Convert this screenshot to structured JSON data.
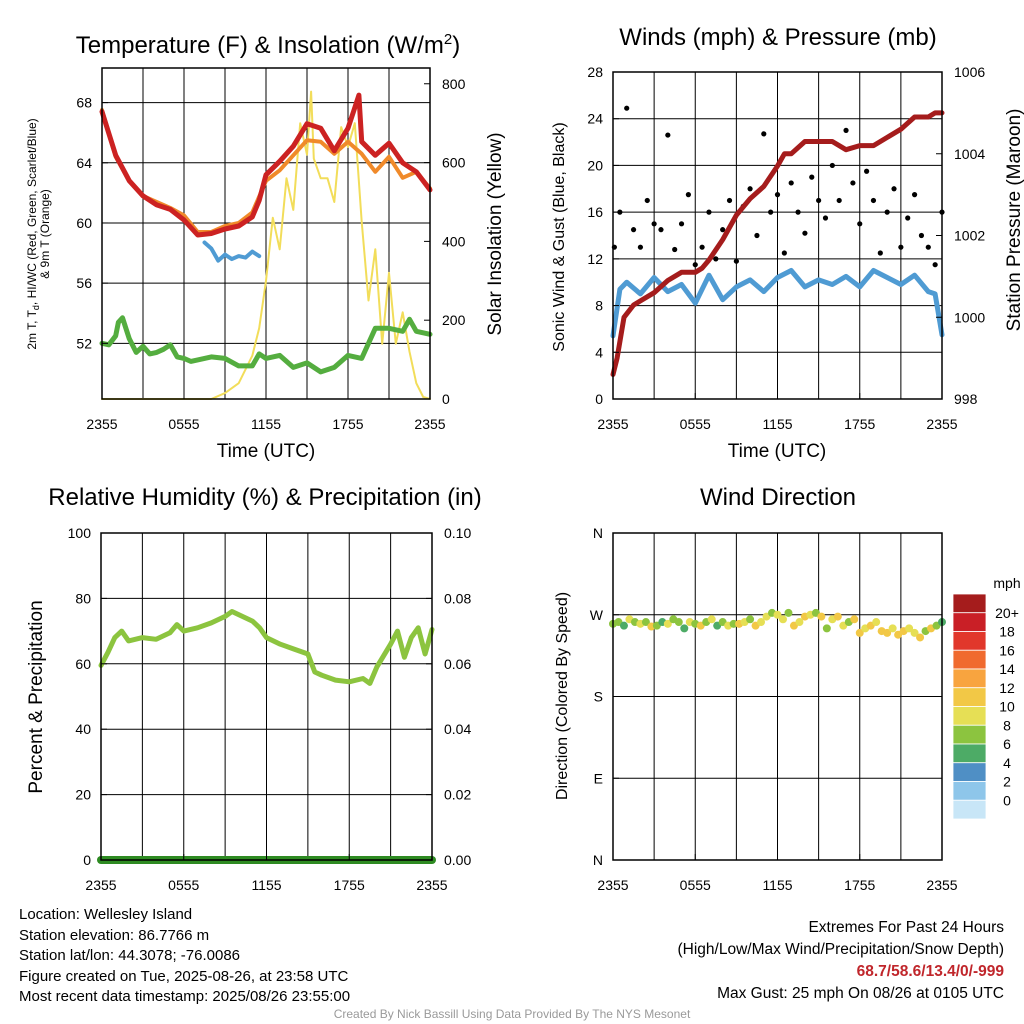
{
  "chart_data": [
    {
      "type": "line",
      "title": "Temperature (F) & Insolation (W/m²)",
      "title_parts": [
        "Temperature (F) & Insolation (W/m",
        "2",
        ")"
      ],
      "xlabel": "Time (UTC)",
      "ylabel_lines": [
        "2m T, T",
        "d",
        ", HI/WC (Red, Green, Scarlet/Blue)",
        "& 9m T (Orange)"
      ],
      "y2label": "Solar Insolation (Yellow)",
      "x_ticks": [
        "2355",
        "0555",
        "1155",
        "1755",
        "2355"
      ],
      "ylim": [
        48.3,
        70.3
      ],
      "y_ticks": [
        52,
        56,
        60,
        64,
        68
      ],
      "y2lim": [
        0,
        840
      ],
      "y2_ticks": [
        0,
        200,
        400,
        600,
        800
      ],
      "series": [
        {
          "color": "#cc2222",
          "axis": "left",
          "x": [
            0,
            1,
            2,
            3,
            4,
            5,
            6,
            7,
            8,
            9,
            10,
            11,
            11.5,
            12,
            13,
            14,
            15,
            16,
            17,
            18,
            18.4,
            18.8,
            19,
            20,
            21,
            22,
            23,
            24
          ],
          "values": [
            67.4,
            64.5,
            62.8,
            61.8,
            61.2,
            60.9,
            60.2,
            59.2,
            59.3,
            59.6,
            59.8,
            60.4,
            61.5,
            63.2,
            64.1,
            65.1,
            66.6,
            66.3,
            64.8,
            66.3,
            67.4,
            68.5,
            65.4,
            64.5,
            65.3,
            64.0,
            63.4,
            62.2
          ]
        },
        {
          "color": "#f08a2a",
          "axis": "left",
          "x": [
            0,
            1,
            2,
            3,
            4,
            5,
            6,
            7,
            8,
            9,
            10,
            11,
            12,
            13,
            14,
            15,
            16,
            17,
            18,
            18.5,
            19,
            20,
            21,
            22,
            23,
            24
          ],
          "values": [
            67.5,
            64.4,
            62.8,
            61.8,
            61.4,
            61.0,
            60.5,
            59.4,
            59.4,
            59.8,
            60.0,
            60.7,
            62.8,
            63.5,
            64.5,
            65.5,
            65.4,
            64.6,
            65.4,
            65.0,
            64.6,
            63.4,
            64.4,
            63.0,
            63.4,
            62.3
          ]
        },
        {
          "color": "#4f9bd3",
          "axis": "left",
          "x": [
            7.5,
            8,
            8.5,
            9,
            9.5,
            10,
            10.5,
            11,
            11.5
          ],
          "values": [
            58.7,
            58.3,
            57.5,
            57.9,
            57.6,
            57.8,
            57.7,
            58.1,
            57.8
          ]
        },
        {
          "color": "#54ad3f",
          "axis": "left",
          "x": [
            0,
            0.5,
            1,
            1.2,
            1.5,
            2,
            2.5,
            3,
            3.5,
            4,
            4.5,
            5,
            5.5,
            6,
            6.5,
            7,
            8,
            9,
            10,
            11,
            11.5,
            12,
            13,
            14,
            15,
            16,
            17,
            18,
            19,
            20,
            21,
            22,
            22.5,
            23,
            24
          ],
          "values": [
            52.0,
            51.9,
            52.5,
            53.4,
            53.7,
            52.3,
            51.4,
            51.8,
            51.3,
            51.4,
            51.6,
            51.9,
            51.1,
            51.0,
            50.8,
            50.9,
            51.1,
            51.0,
            50.5,
            50.5,
            51.3,
            51.0,
            51.2,
            50.4,
            50.7,
            50.1,
            50.4,
            51.2,
            51.0,
            53.0,
            53.0,
            52.8,
            53.6,
            52.8,
            52.6
          ]
        },
        {
          "color": "#f2dd5a",
          "axis": "right",
          "x": [
            0,
            5,
            8,
            9,
            10,
            11,
            11.5,
            12,
            12.5,
            13,
            13.5,
            14,
            14.5,
            15,
            15.3,
            15.5,
            16,
            16.5,
            17,
            17.5,
            18,
            18.5,
            19,
            19.5,
            20,
            20.5,
            21,
            21.5,
            22,
            22.5,
            23,
            23.5,
            24
          ],
          "values": [
            0,
            0,
            0,
            15,
            40,
            110,
            180,
            300,
            460,
            380,
            560,
            480,
            700,
            620,
            780,
            610,
            560,
            560,
            500,
            690,
            640,
            700,
            450,
            250,
            380,
            140,
            320,
            140,
            220,
            120,
            40,
            5,
            0
          ]
        }
      ]
    },
    {
      "type": "line",
      "title": "Winds (mph) & Pressure (mb)",
      "xlabel": "Time (UTC)",
      "ylabel": "Sonic Wind & Gust (Blue, Black)",
      "y2label": "Station Pressure (Maroon)",
      "x_ticks": [
        "2355",
        "0555",
        "1155",
        "1755",
        "2355"
      ],
      "ylim": [
        0,
        28
      ],
      "y_ticks": [
        0,
        4,
        8,
        12,
        16,
        20,
        24,
        28
      ],
      "y2lim": [
        998,
        1006
      ],
      "y2_ticks": [
        998,
        1000,
        1002,
        1004,
        1006
      ],
      "series": [
        {
          "name": "",
          "color": "#4f9bd3",
          "axis": "left",
          "x": [
            0,
            0.5,
            1,
            2,
            3,
            4,
            5,
            6,
            7,
            8,
            9,
            10,
            11,
            12,
            13,
            14,
            15,
            16,
            17,
            18,
            19,
            20,
            21,
            22,
            23,
            23.5,
            24
          ],
          "values": [
            5.4,
            9.4,
            10.0,
            9.0,
            10.4,
            9.2,
            9.8,
            8.2,
            10.6,
            8.5,
            9.6,
            10.2,
            9.2,
            10.4,
            11.0,
            9.6,
            10.2,
            9.8,
            10.5,
            9.6,
            11.0,
            10.4,
            9.8,
            10.6,
            9.2,
            9.0,
            5.5
          ]
        },
        {
          "name": "",
          "color": "#000000",
          "axis": "left",
          "style": "points",
          "x": [
            0.1,
            0.5,
            1,
            1.5,
            2,
            2.5,
            3,
            3.5,
            4,
            4.5,
            5,
            5.5,
            6,
            6.5,
            7,
            7.5,
            8,
            8.5,
            9,
            9.5,
            10,
            10.5,
            11,
            11.5,
            12,
            12.5,
            13,
            13.5,
            14,
            14.5,
            15,
            15.5,
            16,
            16.5,
            17,
            17.5,
            18,
            18.5,
            19,
            19.5,
            20,
            20.5,
            21,
            21.5,
            22,
            22.5,
            23,
            23.5,
            24
          ],
          "values": [
            13.0,
            16.0,
            24.9,
            14.5,
            13.0,
            17.0,
            15.0,
            14.5,
            22.6,
            12.8,
            15.0,
            17.5,
            11.5,
            13.0,
            16.0,
            12.0,
            14.5,
            17.0,
            11.8,
            16.5,
            18.0,
            14.0,
            22.7,
            16.0,
            17.5,
            12.5,
            18.5,
            16.0,
            14.2,
            19.0,
            17.0,
            15.5,
            20.0,
            17.0,
            23.0,
            18.5,
            15.0,
            19.5,
            17.0,
            12.5,
            16.0,
            18.0,
            13.0,
            15.5,
            17.5,
            14.0,
            13.0,
            11.5,
            16.0
          ]
        },
        {
          "name": "",
          "color": "#a51c1c",
          "axis": "right",
          "x": [
            0,
            0.3,
            0.8,
            1.5,
            2,
            3,
            4,
            5,
            6,
            6.5,
            7,
            8,
            9,
            10,
            11,
            12,
            12.5,
            13,
            14,
            15,
            16,
            17,
            18,
            19,
            20,
            21,
            22,
            23,
            23.5,
            24
          ],
          "values": [
            998.6,
            999.0,
            1000.0,
            1000.3,
            1000.4,
            1000.6,
            1000.9,
            1001.1,
            1001.1,
            1001.2,
            1001.4,
            1001.9,
            1002.5,
            1002.9,
            1003.2,
            1003.7,
            1004.0,
            1004.0,
            1004.3,
            1004.3,
            1004.3,
            1004.1,
            1004.2,
            1004.2,
            1004.4,
            1004.6,
            1004.9,
            1004.9,
            1005.0,
            1005.0
          ]
        }
      ]
    },
    {
      "type": "line",
      "title": "Relative Humidity (%) & Precipitation (in)",
      "ylabel": "Percent & Precipitation",
      "x_ticks": [
        "2355",
        "0555",
        "1155",
        "1755",
        "2355"
      ],
      "ylim": [
        0,
        100
      ],
      "y_ticks": [
        0,
        20,
        40,
        60,
        80,
        100
      ],
      "y2lim": [
        0,
        0.1
      ],
      "y2_ticks": [
        "0.00",
        "0.02",
        "0.04",
        "0.06",
        "0.08",
        "0.10"
      ],
      "series": [
        {
          "name": "",
          "color": "#8cc43f",
          "axis": "left",
          "x": [
            0,
            0.5,
            1,
            1.5,
            2,
            3,
            4,
            5,
            5.5,
            6,
            7,
            8,
            9,
            9.5,
            10,
            11,
            11.5,
            12,
            13,
            14,
            15,
            15.5,
            16,
            17,
            18,
            19,
            19.5,
            20,
            21,
            21.5,
            22,
            22.5,
            23,
            23.5,
            24
          ],
          "values": [
            59.5,
            63.5,
            68.0,
            70.0,
            67.0,
            68.0,
            67.5,
            69.5,
            72.0,
            70.0,
            71.0,
            72.5,
            74.5,
            76.0,
            75.0,
            73.0,
            71.0,
            68.0,
            66.0,
            64.5,
            63.0,
            57.5,
            56.5,
            55.0,
            54.5,
            55.5,
            54.0,
            59.0,
            66.0,
            70.0,
            62.0,
            68.0,
            71.0,
            63.0,
            70.5
          ]
        },
        {
          "name": "",
          "color": "#2e8b22",
          "axis": "right",
          "x": [
            0,
            24
          ],
          "values": [
            0.0,
            0.0
          ]
        }
      ]
    },
    {
      "type": "scatter",
      "title": "Wind Direction",
      "xlabel": "",
      "ylabel": "Direction (Colored By Speed)",
      "x_ticks": [
        "2355",
        "0555",
        "1155",
        "1755",
        "2355"
      ],
      "y_ticks": [
        "N",
        "E",
        "S",
        "W",
        "N"
      ],
      "ylim": [
        0,
        360
      ],
      "colorbar": {
        "title": "mph",
        "labels": [
          "20+",
          "18",
          "16",
          "14",
          "12",
          "10",
          "8",
          "6",
          "4",
          "2",
          "0"
        ],
        "colors": [
          "#a51c1c",
          "#c91f26",
          "#e1372b",
          "#f06a2e",
          "#f8a43f",
          "#f2c846",
          "#e6df55",
          "#8cc43f",
          "#4dab66",
          "#4f8fc5",
          "#8ec6ea",
          "#c8e6f7"
        ]
      },
      "series": [
        {
          "name": "",
          "x": [
            0,
            0.4,
            0.8,
            1.2,
            1.6,
            2,
            2.4,
            2.8,
            3.2,
            3.6,
            4,
            4.4,
            4.8,
            5.2,
            5.6,
            6,
            6.4,
            6.8,
            7.2,
            7.6,
            8,
            8.4,
            8.8,
            9.2,
            9.6,
            10,
            10.4,
            10.8,
            11.2,
            11.6,
            12,
            12.4,
            12.8,
            13.2,
            13.6,
            14,
            14.4,
            14.8,
            15.2,
            15.6,
            16,
            16.4,
            16.8,
            17.2,
            17.6,
            18,
            18.4,
            18.8,
            19.2,
            19.6,
            20,
            20.4,
            20.8,
            21.2,
            21.6,
            22,
            22.4,
            22.8,
            23.2,
            23.6,
            24
          ],
          "values": [
            260,
            262,
            258,
            265,
            262,
            260,
            262,
            257,
            258,
            262,
            260,
            265,
            262,
            255,
            262,
            260,
            258,
            262,
            265,
            258,
            262,
            258,
            260,
            260,
            262,
            265,
            258,
            262,
            268,
            272,
            270,
            265,
            272,
            258,
            262,
            268,
            270,
            272,
            268,
            255,
            265,
            268,
            258,
            262,
            265,
            250,
            255,
            258,
            262,
            252,
            250,
            255,
            248,
            252,
            255,
            250,
            245,
            252,
            255,
            258,
            262
          ],
          "speeds": [
            9,
            8,
            7,
            10,
            8,
            11,
            9,
            12,
            8,
            7,
            10,
            9,
            8,
            6,
            11,
            9,
            12,
            8,
            10,
            7,
            9,
            11,
            8,
            12,
            10,
            9,
            12,
            11,
            10,
            9,
            11,
            10,
            9,
            12,
            11,
            12,
            10,
            9,
            12,
            8,
            11,
            12,
            10,
            9,
            13,
            12,
            11,
            12,
            10,
            13,
            12,
            11,
            12,
            13,
            10,
            11,
            12,
            9,
            12,
            8,
            6
          ]
        }
      ]
    }
  ],
  "location_label": "Location: Wellesley Island",
  "elevation_label": "Station elevation: 86.7766 m",
  "latlon_label": "Station lat/lon: 44.3078; -76.0086",
  "created_label": "Figure created on Tue, 2025-08-26, at 23:58 UTC",
  "timestamp_label": "Most recent data timestamp: 2025/08/26 23:55:00",
  "extremes_title": "Extremes For Past 24 Hours",
  "extremes_legend": "(High/Low/Max Wind/Precipitation/Snow Depth)",
  "extremes_values": "68.7/58.6/13.4/0/-999",
  "max_gust": "Max Gust: 25 mph On 08/26 at 0105 UTC",
  "credit": "Created By Nick Bassill Using Data Provided By The NYS Mesonet"
}
